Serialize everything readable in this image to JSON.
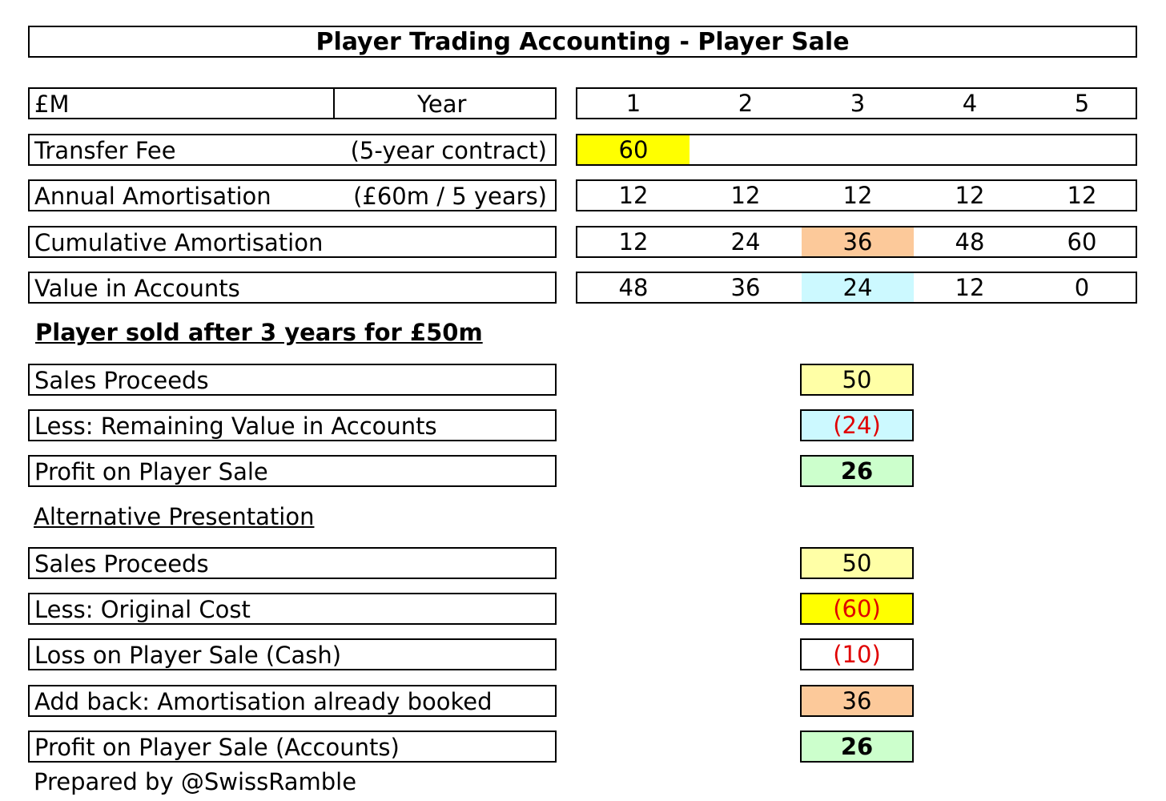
{
  "title": "Player Trading Accounting - Player Sale",
  "header": {
    "currency": "£M",
    "year_label": "Year",
    "years": [
      "1",
      "2",
      "3",
      "4",
      "5"
    ]
  },
  "rows": {
    "transfer_fee": {
      "label": "Transfer Fee",
      "note": "(5-year contract)",
      "values": [
        "60"
      ]
    },
    "annual_amortisation": {
      "label": "Annual Amortisation",
      "note": "(£60m / 5 years)",
      "values": [
        "12",
        "12",
        "12",
        "12",
        "12"
      ]
    },
    "cumulative_amortisation": {
      "label": "Cumulative Amortisation",
      "values": [
        "12",
        "24",
        "36",
        "48",
        "60"
      ]
    },
    "value_in_accounts": {
      "label": "Value in Accounts",
      "values": [
        "48",
        "36",
        "24",
        "12",
        "0"
      ]
    }
  },
  "sale_heading": "Player sold after 3 years for £50m",
  "sale": {
    "proceeds": {
      "label": "Sales Proceeds",
      "value": "50"
    },
    "remaining_value": {
      "label": "Less: Remaining Value in Accounts",
      "value": "(24)"
    },
    "profit": {
      "label": "Profit on Player Sale",
      "value": "26"
    }
  },
  "alt_heading": "Alternative Presentation",
  "alt": {
    "proceeds": {
      "label": "Sales Proceeds",
      "value": "50"
    },
    "original_cost": {
      "label": "Less: Original Cost",
      "value": "(60)"
    },
    "loss_cash": {
      "label": "Loss on Player Sale (Cash)",
      "value": "(10)"
    },
    "add_back": {
      "label": "Add back: Amortisation already booked",
      "value": "36"
    },
    "profit_accounts": {
      "label": "Profit on Player Sale (Accounts)",
      "value": "26"
    }
  },
  "footer": "Prepared by @SwissRamble",
  "colors": {
    "yellow": "#ffff00",
    "light_yellow": "#ffffa6",
    "peach": "#fcc99a",
    "light_cyan": "#ccf9ff",
    "light_green": "#ccffcc",
    "negative": "#e00000"
  }
}
